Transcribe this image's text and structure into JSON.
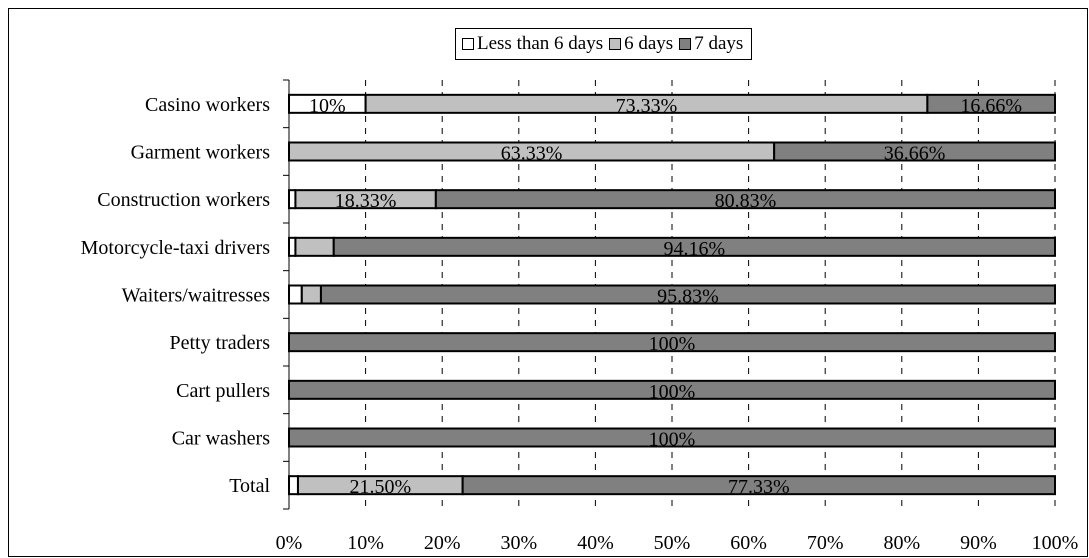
{
  "chart_data": {
    "type": "bar",
    "orientation": "horizontal",
    "stacked": "percent",
    "categories": [
      "Casino workers",
      "Garment workers",
      "Construction workers",
      "Motorcycle-taxi drivers",
      "Waiters/waitresses",
      "Petty traders",
      "Cart pullers",
      "Car washers",
      "Total"
    ],
    "series": [
      {
        "name": "Less than 6 days",
        "color": "#ffffff",
        "values": [
          10,
          0,
          0.84,
          0.84,
          1.67,
          0,
          0,
          0,
          1.17
        ]
      },
      {
        "name": "6 days",
        "color": "#c0c0c0",
        "values": [
          73.33,
          63.33,
          18.33,
          5.0,
          2.5,
          0,
          0,
          0,
          21.5
        ]
      },
      {
        "name": "7 days",
        "color": "#808080",
        "values": [
          16.66,
          36.66,
          80.83,
          94.16,
          95.83,
          100,
          100,
          100,
          77.33
        ]
      }
    ],
    "data_labels": [
      [
        "10%",
        "73.33%",
        "16.66%"
      ],
      [
        "",
        "63.33%",
        "36.66%"
      ],
      [
        "",
        "18.33%",
        "80.83%"
      ],
      [
        "",
        "",
        "94.16%"
      ],
      [
        "",
        "",
        "95.83%"
      ],
      [
        "",
        "",
        "100%"
      ],
      [
        "",
        "",
        "100%"
      ],
      [
        "",
        "",
        "100%"
      ],
      [
        "",
        "21.50%",
        "77.33%"
      ]
    ],
    "x_ticks": [
      "0%",
      "10%",
      "20%",
      "30%",
      "40%",
      "50%",
      "60%",
      "70%",
      "80%",
      "90%",
      "100%"
    ],
    "xlim": [
      0,
      100
    ],
    "grid": "vertical dashed",
    "legend_position": "top"
  }
}
